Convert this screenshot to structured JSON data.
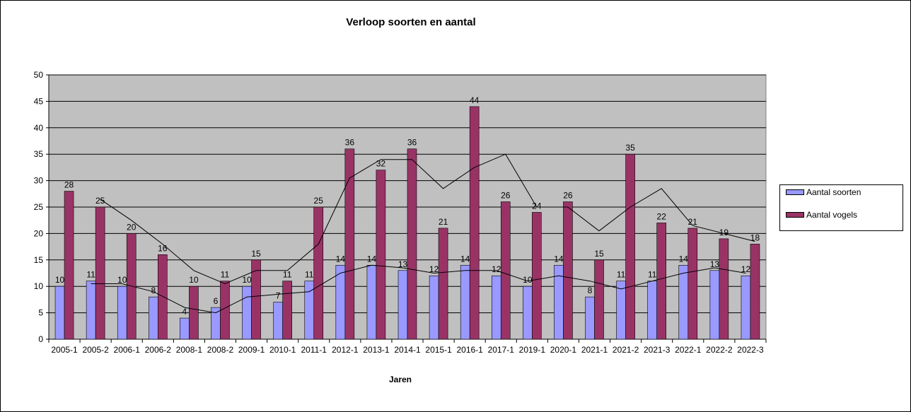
{
  "chart_data": {
    "type": "bar",
    "title": "Verloop soorten en aantal",
    "xlabel": "Jaren",
    "ylabel": "",
    "ylim": [
      0,
      50
    ],
    "yticks": [
      0,
      5,
      10,
      15,
      20,
      25,
      30,
      35,
      40,
      45,
      50
    ],
    "grid": true,
    "legend_position": "right",
    "categories": [
      "2005-1",
      "2005-2",
      "2006-1",
      "2006-2",
      "2008-1",
      "2008-2",
      "2009-1",
      "2010-1",
      "2011-1",
      "2012-1",
      "2013-1",
      "2014-1",
      "2015-1",
      "2016-1",
      "2017-1",
      "2019-1",
      "2020-1",
      "2021-1",
      "2021-2",
      "2021-3",
      "2022-1",
      "2022-2",
      "2022-3"
    ],
    "series": [
      {
        "name": "Aantal soorten",
        "color": "#9999ff",
        "values": [
          10,
          11,
          10,
          8,
          4,
          6,
          10,
          7,
          11,
          14,
          14,
          13,
          12,
          14,
          12,
          10,
          14,
          8,
          11,
          11,
          14,
          13,
          12
        ]
      },
      {
        "name": "Aantal vogels",
        "color": "#993366",
        "values": [
          28,
          25,
          20,
          16,
          10,
          11,
          15,
          11,
          25,
          36,
          32,
          36,
          21,
          44,
          26,
          24,
          26,
          15,
          35,
          22,
          21,
          19,
          18
        ]
      }
    ],
    "trendlines": [
      {
        "of": "Aantal soorten",
        "type": "moving-average",
        "period": 2,
        "color": "#000000"
      },
      {
        "of": "Aantal vogels",
        "type": "moving-average",
        "period": 2,
        "color": "#000000"
      }
    ],
    "plot_background": "#c0c0c0"
  }
}
